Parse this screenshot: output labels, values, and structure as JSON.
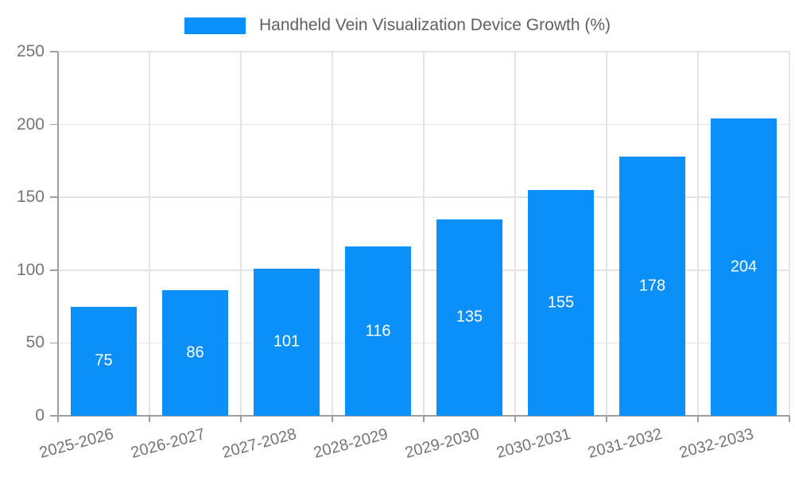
{
  "chart_data": {
    "type": "bar",
    "title": "Handheld Vein Visualization Device Growth (%)",
    "categories": [
      "2025-2026",
      "2026-2027",
      "2027-2028",
      "2028-2029",
      "2029-2030",
      "2030-2031",
      "2031-2032",
      "2032-2033"
    ],
    "values": [
      75,
      86,
      101,
      116,
      135,
      155,
      178,
      204
    ],
    "xlabel": "",
    "ylabel": "",
    "ylim": [
      0,
      250
    ],
    "yticks": [
      0,
      50,
      100,
      150,
      200,
      250
    ],
    "grid": true,
    "legend_position": "top",
    "colors": {
      "bar": "#0a90f8",
      "value_label": "#ffffff",
      "grid": "#e4e4e4",
      "axis": "#9e9e9e",
      "tick_label": "#757575",
      "legend_text": "#5f5f5f",
      "background": "#ffffff"
    }
  }
}
